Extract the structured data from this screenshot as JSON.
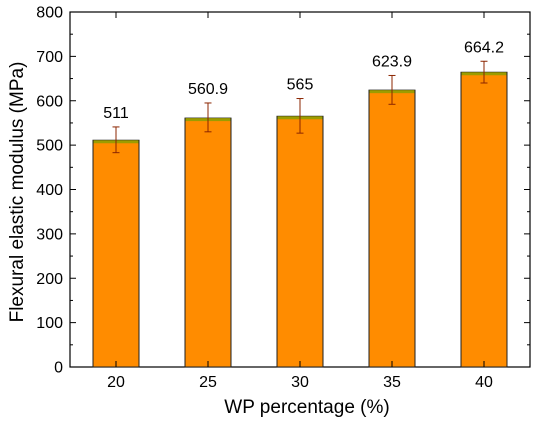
{
  "chart_data": {
    "type": "bar",
    "title": "",
    "xlabel": "WP percentage (%)",
    "ylabel": "Flexural elastic modulus (MPa)",
    "categories": [
      "20",
      "25",
      "30",
      "35",
      "40"
    ],
    "values": [
      511,
      560.9,
      565,
      623.9,
      664.2
    ],
    "data_labels": [
      "511",
      "560.9",
      "565",
      "623.9",
      "664.2"
    ],
    "error_bars": [
      [
        483,
        541
      ],
      [
        530,
        595
      ],
      [
        527,
        605
      ],
      [
        592,
        657
      ],
      [
        640,
        689
      ]
    ],
    "ylim": [
      0,
      800
    ],
    "yticks": [
      0,
      100,
      200,
      300,
      400,
      500,
      600,
      700,
      800
    ],
    "grid": false,
    "legend": "none",
    "colors": {
      "bar_fill": "#FF8C00",
      "bar_top": "#9C9C00",
      "bar_stroke": "#1f1f1f",
      "error_bar": "#8B2500",
      "axis": "#000000"
    }
  }
}
